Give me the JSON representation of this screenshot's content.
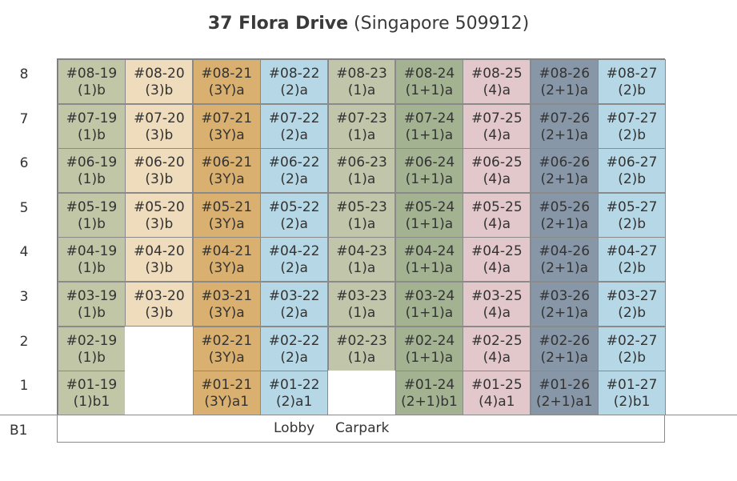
{
  "title": {
    "main": "37 Flora Drive",
    "sub": "(Singapore 509912)"
  },
  "floors": [
    "8",
    "7",
    "6",
    "5",
    "4",
    "3",
    "2",
    "1"
  ],
  "basement": {
    "label": "B1",
    "lobby": "Lobby",
    "carpark": "Carpark"
  },
  "colors": {
    "19": "#c0c6a6",
    "20": "#eedcbd",
    "21": "#d9b06f",
    "22": "#b6d8e6",
    "23": "#c1c6aa",
    "24": "#a3b392",
    "25": "#e2c7cb",
    "26": "#8897a8",
    "27": "#b6d8e6"
  },
  "rows": [
    {
      "floor": "8",
      "units": [
        {
          "col": "19",
          "unit": "#08-19",
          "type": "(1)b"
        },
        {
          "col": "20",
          "unit": "#08-20",
          "type": "(3)b"
        },
        {
          "col": "21",
          "unit": "#08-21",
          "type": "(3Y)a"
        },
        {
          "col": "22",
          "unit": "#08-22",
          "type": "(2)a"
        },
        {
          "col": "23",
          "unit": "#08-23",
          "type": "(1)a"
        },
        {
          "col": "24",
          "unit": "#08-24",
          "type": "(1+1)a"
        },
        {
          "col": "25",
          "unit": "#08-25",
          "type": "(4)a"
        },
        {
          "col": "26",
          "unit": "#08-26",
          "type": "(2+1)a"
        },
        {
          "col": "27",
          "unit": "#08-27",
          "type": "(2)b"
        }
      ]
    },
    {
      "floor": "7",
      "units": [
        {
          "col": "19",
          "unit": "#07-19",
          "type": "(1)b"
        },
        {
          "col": "20",
          "unit": "#07-20",
          "type": "(3)b"
        },
        {
          "col": "21",
          "unit": "#07-21",
          "type": "(3Y)a"
        },
        {
          "col": "22",
          "unit": "#07-22",
          "type": "(2)a"
        },
        {
          "col": "23",
          "unit": "#07-23",
          "type": "(1)a"
        },
        {
          "col": "24",
          "unit": "#07-24",
          "type": "(1+1)a"
        },
        {
          "col": "25",
          "unit": "#07-25",
          "type": "(4)a"
        },
        {
          "col": "26",
          "unit": "#07-26",
          "type": "(2+1)a"
        },
        {
          "col": "27",
          "unit": "#07-27",
          "type": "(2)b"
        }
      ]
    },
    {
      "floor": "6",
      "units": [
        {
          "col": "19",
          "unit": "#06-19",
          "type": "(1)b"
        },
        {
          "col": "20",
          "unit": "#06-20",
          "type": "(3)b"
        },
        {
          "col": "21",
          "unit": "#06-21",
          "type": "(3Y)a"
        },
        {
          "col": "22",
          "unit": "#06-22",
          "type": "(2)a"
        },
        {
          "col": "23",
          "unit": "#06-23",
          "type": "(1)a"
        },
        {
          "col": "24",
          "unit": "#06-24",
          "type": "(1+1)a"
        },
        {
          "col": "25",
          "unit": "#06-25",
          "type": "(4)a"
        },
        {
          "col": "26",
          "unit": "#06-26",
          "type": "(2+1)a"
        },
        {
          "col": "27",
          "unit": "#06-27",
          "type": "(2)b"
        }
      ]
    },
    {
      "floor": "5",
      "units": [
        {
          "col": "19",
          "unit": "#05-19",
          "type": "(1)b"
        },
        {
          "col": "20",
          "unit": "#05-20",
          "type": "(3)b"
        },
        {
          "col": "21",
          "unit": "#05-21",
          "type": "(3Y)a"
        },
        {
          "col": "22",
          "unit": "#05-22",
          "type": "(2)a"
        },
        {
          "col": "23",
          "unit": "#05-23",
          "type": "(1)a"
        },
        {
          "col": "24",
          "unit": "#05-24",
          "type": "(1+1)a"
        },
        {
          "col": "25",
          "unit": "#05-25",
          "type": "(4)a"
        },
        {
          "col": "26",
          "unit": "#05-26",
          "type": "(2+1)a"
        },
        {
          "col": "27",
          "unit": "#05-27",
          "type": "(2)b"
        }
      ]
    },
    {
      "floor": "4",
      "units": [
        {
          "col": "19",
          "unit": "#04-19",
          "type": "(1)b"
        },
        {
          "col": "20",
          "unit": "#04-20",
          "type": "(3)b"
        },
        {
          "col": "21",
          "unit": "#04-21",
          "type": "(3Y)a"
        },
        {
          "col": "22",
          "unit": "#04-22",
          "type": "(2)a"
        },
        {
          "col": "23",
          "unit": "#04-23",
          "type": "(1)a"
        },
        {
          "col": "24",
          "unit": "#04-24",
          "type": "(1+1)a"
        },
        {
          "col": "25",
          "unit": "#04-25",
          "type": "(4)a"
        },
        {
          "col": "26",
          "unit": "#04-26",
          "type": "(2+1)a"
        },
        {
          "col": "27",
          "unit": "#04-27",
          "type": "(2)b"
        }
      ]
    },
    {
      "floor": "3",
      "units": [
        {
          "col": "19",
          "unit": "#03-19",
          "type": "(1)b"
        },
        {
          "col": "20",
          "unit": "#03-20",
          "type": "(3)b"
        },
        {
          "col": "21",
          "unit": "#03-21",
          "type": "(3Y)a"
        },
        {
          "col": "22",
          "unit": "#03-22",
          "type": "(2)a"
        },
        {
          "col": "23",
          "unit": "#03-23",
          "type": "(1)a"
        },
        {
          "col": "24",
          "unit": "#03-24",
          "type": "(1+1)a"
        },
        {
          "col": "25",
          "unit": "#03-25",
          "type": "(4)a"
        },
        {
          "col": "26",
          "unit": "#03-26",
          "type": "(2+1)a"
        },
        {
          "col": "27",
          "unit": "#03-27",
          "type": "(2)b"
        }
      ]
    },
    {
      "floor": "2",
      "units": [
        {
          "col": "19",
          "unit": "#02-19",
          "type": "(1)b"
        },
        {
          "col": "20",
          "unit": "",
          "type": ""
        },
        {
          "col": "21",
          "unit": "#02-21",
          "type": "(3Y)a"
        },
        {
          "col": "22",
          "unit": "#02-22",
          "type": "(2)a"
        },
        {
          "col": "23",
          "unit": "#02-23",
          "type": "(1)a"
        },
        {
          "col": "24",
          "unit": "#02-24",
          "type": "(1+1)a"
        },
        {
          "col": "25",
          "unit": "#02-25",
          "type": "(4)a"
        },
        {
          "col": "26",
          "unit": "#02-26",
          "type": "(2+1)a"
        },
        {
          "col": "27",
          "unit": "#02-27",
          "type": "(2)b"
        }
      ]
    },
    {
      "floor": "1",
      "units": [
        {
          "col": "19",
          "unit": "#01-19",
          "type": "(1)b1"
        },
        {
          "col": "20",
          "unit": "",
          "type": ""
        },
        {
          "col": "21",
          "unit": "#01-21",
          "type": "(3Y)a1"
        },
        {
          "col": "22",
          "unit": "#01-22",
          "type": "(2)a1"
        },
        {
          "col": "23",
          "unit": "",
          "type": ""
        },
        {
          "col": "24",
          "unit": "#01-24",
          "type": "(2+1)b1"
        },
        {
          "col": "25",
          "unit": "#01-25",
          "type": "(4)a1"
        },
        {
          "col": "26",
          "unit": "#01-26",
          "type": "(2+1)a1"
        },
        {
          "col": "27",
          "unit": "#01-27",
          "type": "(2)b1"
        }
      ]
    }
  ]
}
